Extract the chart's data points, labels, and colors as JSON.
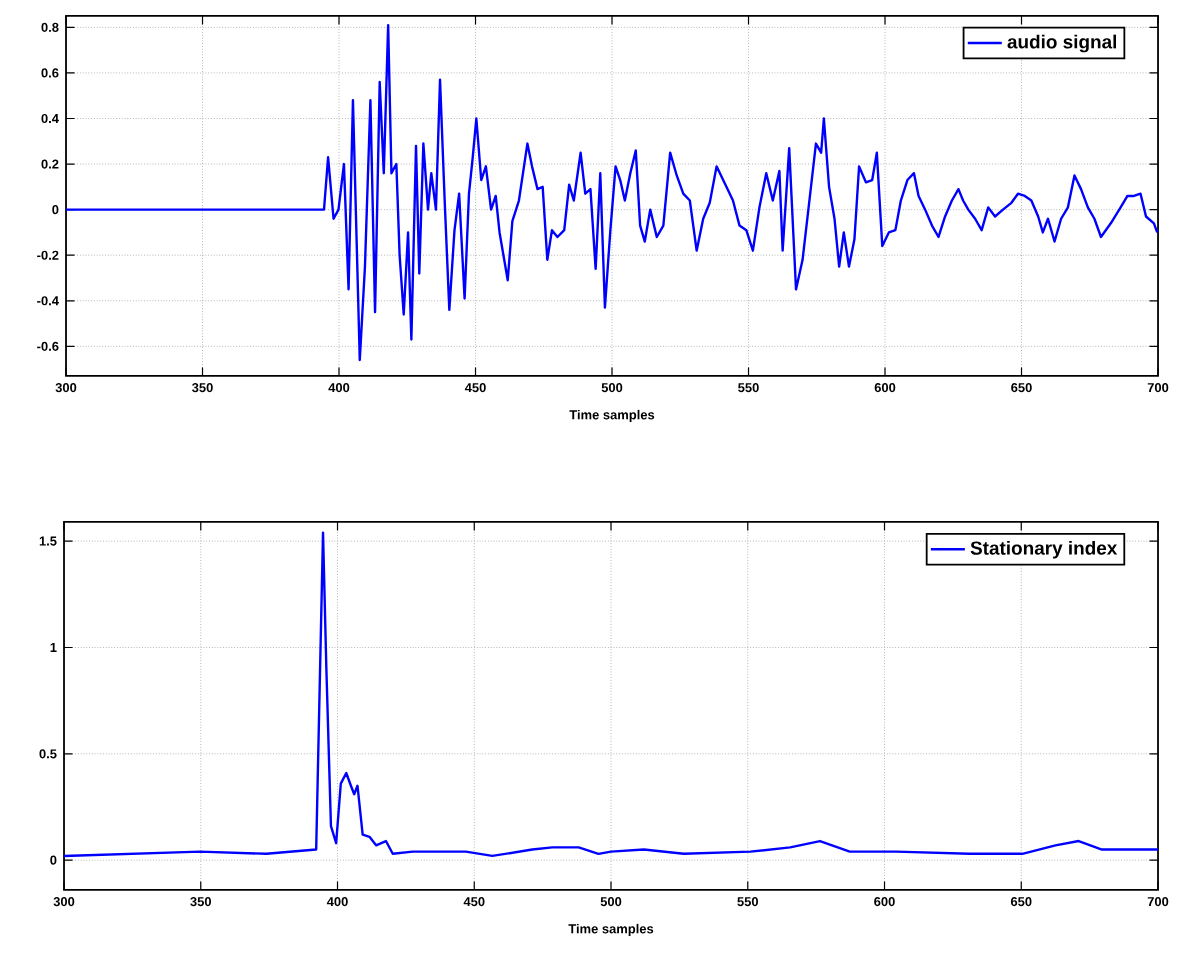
{
  "chart_data": [
    {
      "type": "line",
      "xlabel": "Time samples",
      "xlim": [
        300,
        700
      ],
      "xticks": [
        300,
        350,
        400,
        450,
        500,
        550,
        600,
        650,
        700
      ],
      "ylim": [
        -0.73,
        0.85
      ],
      "yticks": [
        -0.6,
        -0.4,
        -0.2,
        0,
        0.2,
        0.4,
        0.6,
        0.8
      ],
      "grid": true,
      "legend": "top right",
      "marker": "none",
      "line_style": "solid",
      "series": [
        {
          "name": "audio signal",
          "color": "#0000ff",
          "x": [
            300,
            394.5,
            396,
            398,
            399.8,
            401.8,
            403.5,
            405.1,
            407.6,
            409.5,
            411.5,
            413.2,
            414.9,
            416.4,
            418,
            419.2,
            421,
            422.2,
            423.7,
            425.3,
            426.5,
            428.2,
            429.4,
            430.9,
            432.6,
            433.8,
            435.5,
            437,
            438.7,
            440.4,
            442.3,
            444,
            446,
            447.6,
            448.9,
            450.3,
            452.1,
            453.8,
            455.7,
            457.4,
            458.8,
            461.8,
            463.5,
            465.9,
            469,
            470.7,
            472.7,
            474.6,
            476.3,
            478,
            480,
            482.5,
            484.3,
            486,
            488.5,
            490.2,
            492.1,
            494,
            495.7,
            497.4,
            499.4,
            501.3,
            503,
            504.7,
            506.7,
            508.7,
            510.3,
            512,
            514,
            516.4,
            518.8,
            521.3,
            523.7,
            526.1,
            528.5,
            531,
            533.4,
            535.8,
            538.3,
            541.9,
            544.3,
            546.7,
            549.2,
            551.6,
            554,
            556.5,
            558.9,
            561.3,
            562.5,
            564.9,
            567.4,
            569.8,
            572.3,
            574.7,
            576.6,
            577.6,
            579.5,
            581.5,
            583.2,
            584.9,
            586.8,
            588.8,
            590.5,
            593,
            595.3,
            597,
            599,
            601.4,
            603.8,
            605.8,
            608.2,
            610.6,
            612.3,
            614.7,
            617.2,
            619.6,
            622,
            624.5,
            626.9,
            628.6,
            630.5,
            633,
            635.4,
            637.8,
            640.3,
            643.2,
            646.3,
            648.7,
            651.2,
            653.6,
            656.1,
            657.8,
            659.7,
            662.1,
            664.5,
            667,
            669.4,
            671.8,
            674.3,
            676.7,
            679.1,
            682.7,
            686.3,
            688.8,
            691.2,
            693.6,
            695.6,
            698.5,
            699.7
          ],
          "values": [
            0,
            0,
            0.23,
            -0.04,
            0,
            0.2,
            -0.35,
            0.48,
            -0.66,
            -0.25,
            0.48,
            -0.45,
            0.56,
            0.16,
            0.81,
            0.16,
            0.2,
            -0.2,
            -0.46,
            -0.1,
            -0.57,
            0.28,
            -0.28,
            0.29,
            0,
            0.16,
            0,
            0.57,
            0.04,
            -0.44,
            -0.09,
            0.07,
            -0.39,
            0.07,
            0.22,
            0.4,
            0.13,
            0.19,
            0,
            0.06,
            -0.1,
            -0.31,
            -0.05,
            0.04,
            0.29,
            0.19,
            0.09,
            0.1,
            -0.22,
            -0.09,
            -0.12,
            -0.09,
            0.11,
            0.04,
            0.25,
            0.07,
            0.09,
            -0.26,
            0.16,
            -0.43,
            -0.09,
            0.19,
            0.13,
            0.04,
            0.16,
            0.26,
            -0.07,
            -0.14,
            0,
            -0.12,
            -0.07,
            0.25,
            0.15,
            0.07,
            0.04,
            -0.18,
            -0.04,
            0.03,
            0.19,
            0.1,
            0.04,
            -0.07,
            -0.09,
            -0.18,
            0.01,
            0.16,
            0.04,
            0.17,
            -0.18,
            0.27,
            -0.35,
            -0.22,
            0.04,
            0.29,
            0.25,
            0.4,
            0.1,
            -0.04,
            -0.25,
            -0.1,
            -0.25,
            -0.13,
            0.19,
            0.12,
            0.13,
            0.25,
            -0.16,
            -0.1,
            -0.09,
            0.04,
            0.13,
            0.16,
            0.06,
            0,
            -0.07,
            -0.12,
            -0.03,
            0.04,
            0.09,
            0.04,
            0,
            -0.04,
            -0.09,
            0.01,
            -0.03,
            0,
            0.03,
            0.07,
            0.06,
            0.04,
            -0.03,
            -0.1,
            -0.04,
            -0.14,
            -0.04,
            0.01,
            0.15,
            0.09,
            0.01,
            -0.04,
            -0.12,
            -0.06,
            0.01,
            0.06,
            0.06,
            0.07,
            -0.03,
            -0.06,
            -0.1
          ]
        }
      ]
    },
    {
      "type": "line",
      "xlabel": "Time samples",
      "xlim": [
        300,
        700
      ],
      "xticks": [
        300,
        350,
        400,
        450,
        500,
        550,
        600,
        650,
        700
      ],
      "ylim": [
        -0.14,
        1.59
      ],
      "yticks": [
        0,
        0.5,
        1,
        1.5
      ],
      "grid": true,
      "legend": "top right",
      "marker": "none",
      "line_style": "solid",
      "series": [
        {
          "name": "Stationary index",
          "color": "#0000ff",
          "x": [
            300,
            349.7,
            374,
            392.2,
            394.7,
            395.9,
            397.6,
            399.5,
            401.2,
            403.2,
            404.9,
            406.1,
            407.3,
            409.2,
            411.7,
            414.1,
            417.7,
            420.2,
            427.5,
            446.9,
            456.6,
            471.2,
            478.5,
            488.2,
            495.4,
            500,
            512,
            526.6,
            550.9,
            565.5,
            576.4,
            587.3,
            604.3,
            631,
            650.4,
            662.5,
            671,
            679.5,
            700
          ],
          "values": [
            0.02,
            0.04,
            0.03,
            0.05,
            1.54,
            0.91,
            0.16,
            0.08,
            0.36,
            0.41,
            0.35,
            0.31,
            0.35,
            0.12,
            0.11,
            0.07,
            0.09,
            0.03,
            0.04,
            0.04,
            0.02,
            0.05,
            0.06,
            0.06,
            0.03,
            0.04,
            0.05,
            0.03,
            0.04,
            0.06,
            0.09,
            0.04,
            0.04,
            0.03,
            0.03,
            0.07,
            0.09,
            0.05,
            0.05
          ]
        }
      ]
    }
  ]
}
